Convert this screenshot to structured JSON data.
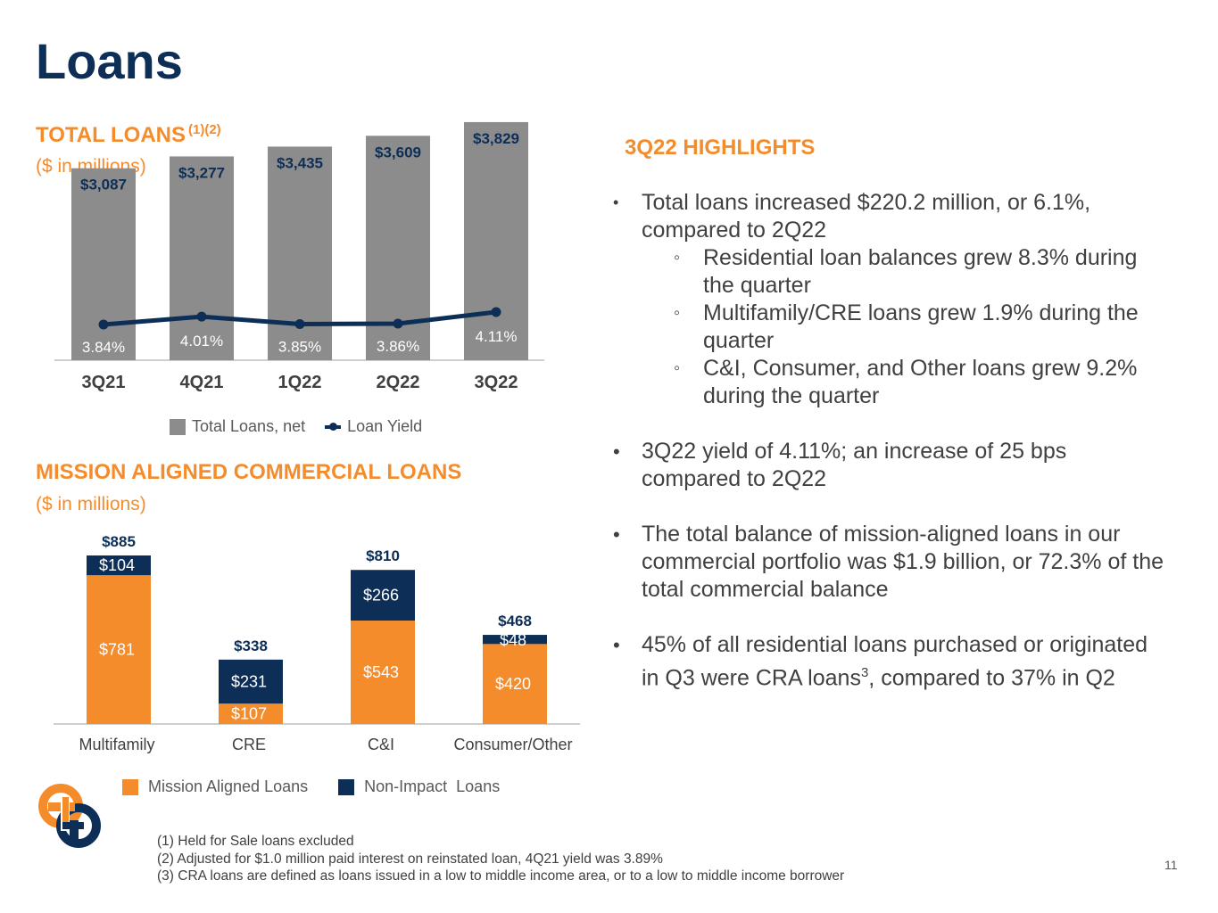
{
  "page": {
    "title": "Loans",
    "page_number": "11",
    "colors": {
      "navy": "#0d2f57",
      "orange": "#f58c2c",
      "gray": "#8c8c8c"
    }
  },
  "total_loans_section": {
    "title": "TOTAL LOANS",
    "title_sup": "(1)(2)",
    "subtitle": "($ in millions)"
  },
  "mission_section": {
    "title": "MISSION ALIGNED COMMERCIAL LOANS",
    "subtitle": "($ in millions)"
  },
  "highlights": {
    "title": "3Q22 HIGHLIGHTS",
    "bullet1": "Total loans increased $220.2 million, or 6.1%, compared to 2Q22",
    "sub1": "Residential loan balances grew 8.3% during the quarter",
    "sub2": "Multifamily/CRE loans grew 1.9% during the quarter",
    "sub3": "C&I, Consumer, and Other loans grew 9.2% during the quarter",
    "bullet2": "3Q22 yield of 4.11%; an increase of 25 bps compared to 2Q22",
    "bullet3": "The total balance of mission-aligned loans in our commercial portfolio was $1.9 billion, or 72.3% of the total commercial balance",
    "bullet4_a": "45% of all residential loans purchased or originated in Q3 were CRA loans",
    "bullet4_sup": "3",
    "bullet4_b": ", compared to 37% in Q2"
  },
  "footnotes": [
    "(1) Held for Sale loans excluded",
    "(2) Adjusted for $1.0 million paid interest on reinstated loan, 4Q21 yield was 3.89%",
    "(3) CRA loans are defined as loans issued in a low to middle income area, or to a low to middle income borrower"
  ],
  "chart_data": [
    {
      "type": "bar",
      "categories": [
        "3Q21",
        "4Q21",
        "1Q22",
        "2Q22",
        "3Q22"
      ],
      "series": [
        {
          "name": "Total Loans, net",
          "type": "bar",
          "values": [
            3087,
            3277,
            3435,
            3609,
            3829
          ],
          "labels": [
            "$3,087",
            "$3,277",
            "$3,435",
            "$3,609",
            "$3,829"
          ],
          "color": "#8c8c8c"
        },
        {
          "name": "Loan Yield",
          "type": "line",
          "values": [
            3.84,
            4.01,
            3.85,
            3.86,
            4.11
          ],
          "labels": [
            "3.84%",
            "4.01%",
            "3.85%",
            "3.86%",
            "4.11%"
          ],
          "color": "#0d2f57"
        }
      ],
      "ylim": [
        0,
        3900
      ],
      "legend": "bottom",
      "grid": false
    },
    {
      "type": "bar",
      "stacked": true,
      "categories": [
        "Multifamily",
        "CRE",
        "C&I",
        "Consumer/Other"
      ],
      "series": [
        {
          "name": "Mission Aligned Loans",
          "values": [
            781,
            107,
            543,
            420
          ],
          "labels": [
            "$781",
            "$107",
            "$543",
            "$420"
          ],
          "color": "#f58c2c"
        },
        {
          "name": "Non-Impact  Loans",
          "values": [
            104,
            231,
            266,
            48
          ],
          "labels": [
            "$104",
            "$231",
            "$266",
            "$48"
          ],
          "color": "#0d2f57"
        }
      ],
      "totals": [
        "$885",
        "$338",
        "$810",
        "$468"
      ],
      "ylim": [
        0,
        885
      ],
      "legend": "bottom",
      "grid": false
    }
  ]
}
